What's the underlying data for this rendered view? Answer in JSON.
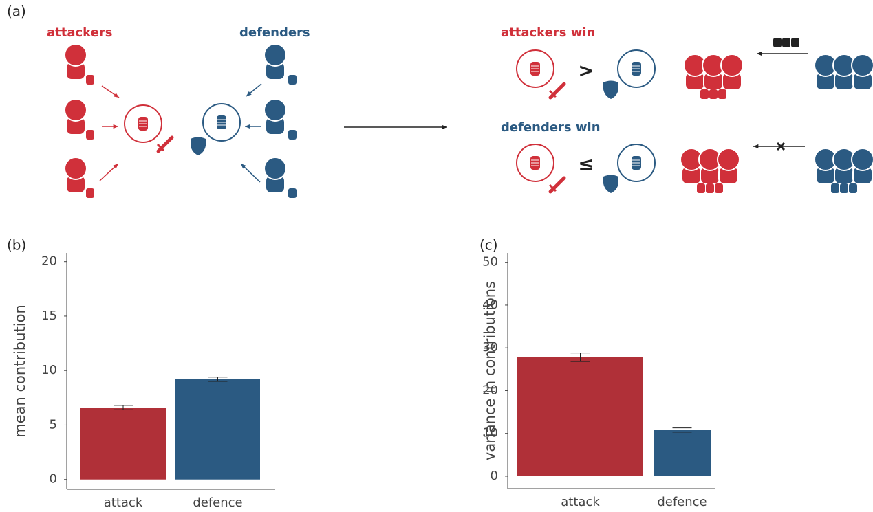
{
  "diagram": {
    "panel_label": "(a)",
    "attackers": "attackers",
    "defenders": "defenders",
    "attackers_win": "attackers win",
    "defenders_win": "defenders win",
    "greater": ">",
    "less_equal": "≤"
  },
  "chart_data": [
    {
      "type": "bar",
      "panel_label": "(b)",
      "y_label": "mean contribution",
      "categories": [
        "attack",
        "defence"
      ],
      "values": [
        6.6,
        9.2
      ],
      "errors": [
        0.2,
        0.2
      ],
      "colors": [
        "#b03038",
        "#2b5a82"
      ],
      "ylim": [
        -0.9,
        20.8
      ],
      "yticks": [
        0,
        5,
        10,
        15,
        20
      ]
    },
    {
      "type": "bar",
      "panel_label": "(c)",
      "y_label": "variance in contributions",
      "categories": [
        "attack",
        "defence"
      ],
      "values": [
        27.8,
        10.8
      ],
      "errors": [
        1.0,
        0.5
      ],
      "colors": [
        "#b03038",
        "#2b5a82"
      ],
      "ylim": [
        -2.9,
        52.2
      ],
      "yticks": [
        0,
        10,
        20,
        30,
        40,
        50
      ]
    }
  ]
}
